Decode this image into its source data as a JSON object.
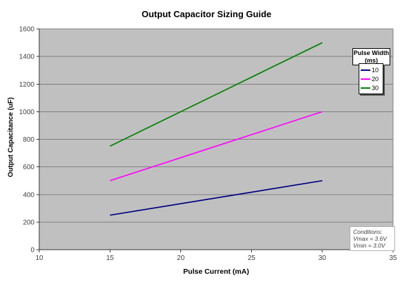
{
  "chart_data": {
    "type": "line",
    "title": "Output Capacitor Sizing Guide",
    "xlabel": "Pulse Current (mA)",
    "ylabel": "Output Capacitance (uF)",
    "x": [
      15,
      30
    ],
    "series": [
      {
        "name": "10",
        "color": "#000080",
        "values": [
          250,
          500
        ]
      },
      {
        "name": "20",
        "color": "#FF00FF",
        "values": [
          500,
          1000
        ]
      },
      {
        "name": "30",
        "color": "#008000",
        "values": [
          750,
          1500
        ]
      }
    ],
    "xlim": [
      10,
      35
    ],
    "ylim": [
      0,
      1600
    ],
    "xticks": [
      10,
      15,
      20,
      25,
      30,
      35
    ],
    "yticks": [
      0,
      200,
      400,
      600,
      800,
      1000,
      1200,
      1400,
      1600
    ],
    "grid": "horizontal",
    "legend_position": "right-top",
    "plot_bg": "#c0c0c0",
    "grid_color": "#808080",
    "axis_color": "#333333"
  },
  "legend": {
    "title_line1": "Pulse Width",
    "title_line2": "(ms)"
  },
  "conditions": {
    "lines": [
      "Conditions:",
      "Vmax = 3.6V",
      "Vmin = 3.0V"
    ]
  }
}
